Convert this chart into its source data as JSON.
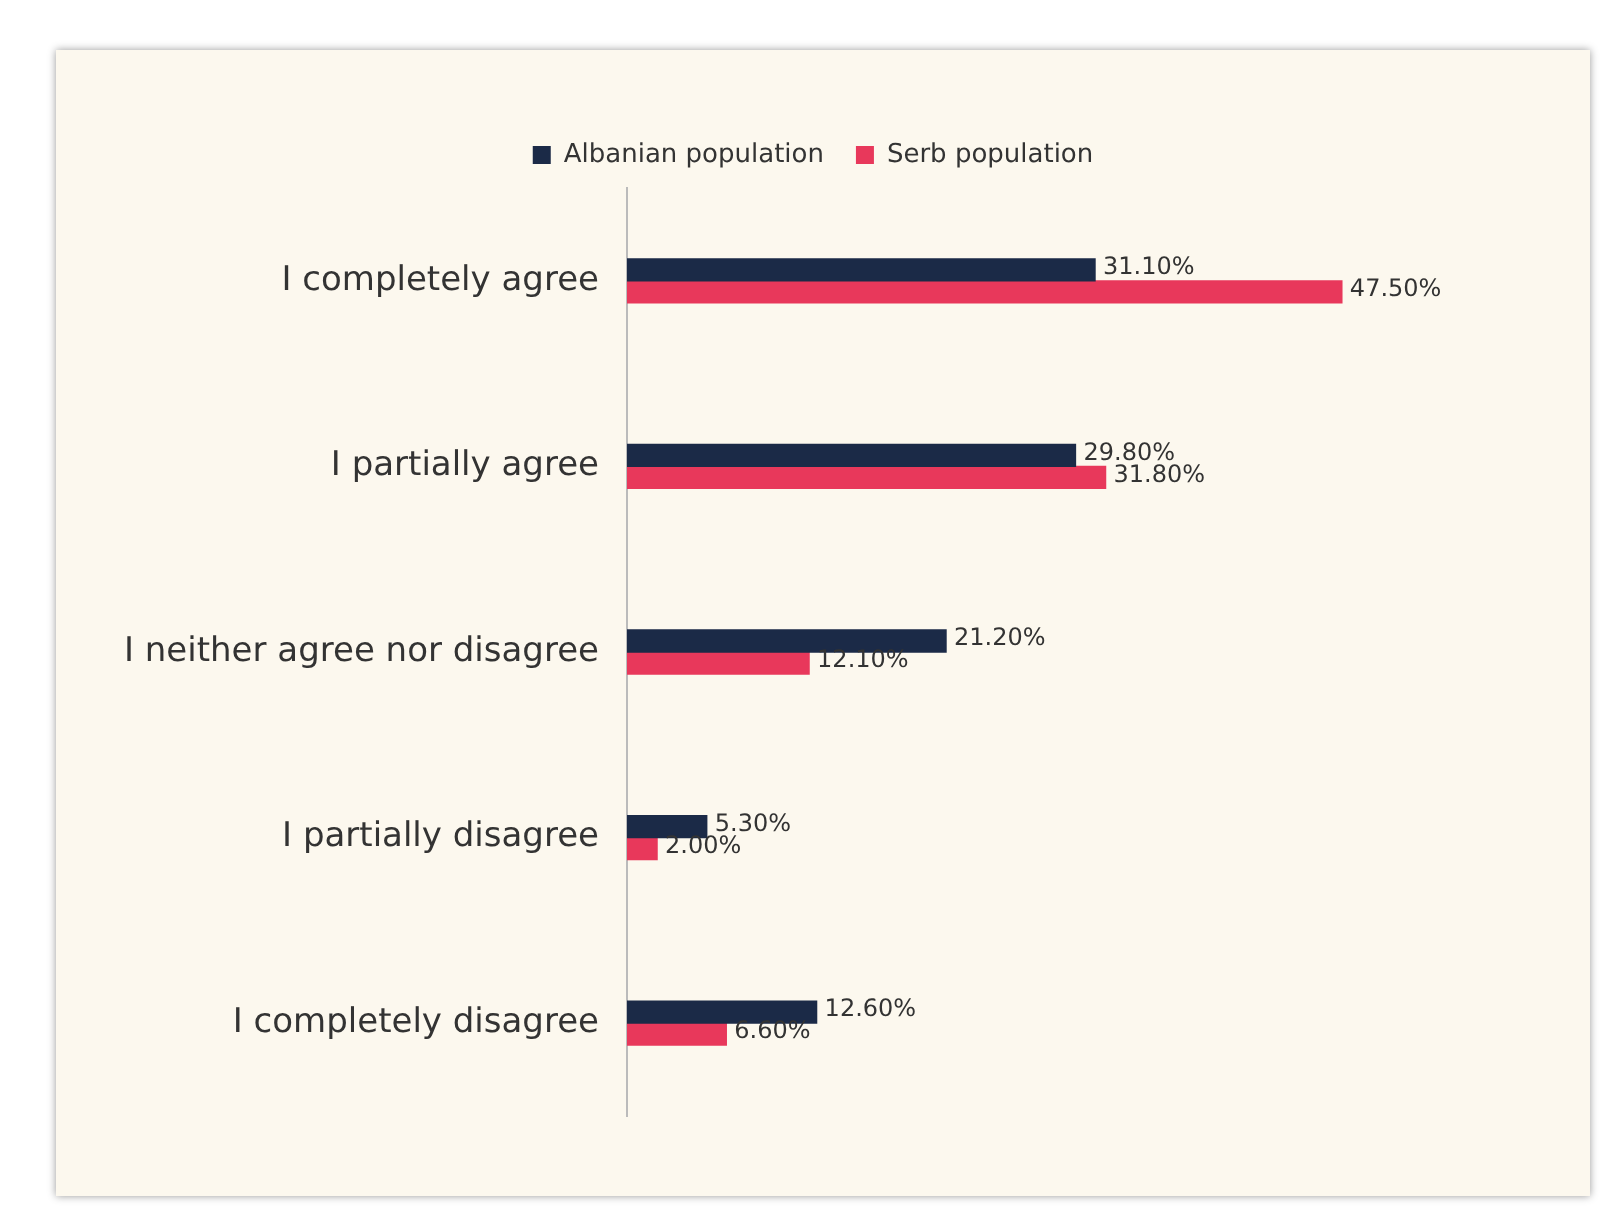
{
  "chart_data": {
    "type": "bar",
    "orientation": "horizontal",
    "categories": [
      "I completely agree",
      "I partially agree",
      "I neither agree nor disagree",
      "I partially disagree",
      "I completely disagree"
    ],
    "series": [
      {
        "name": "Albanian population",
        "color": "#1b2a47",
        "values": [
          31.1,
          29.8,
          21.2,
          5.3,
          12.6
        ],
        "value_labels": [
          "31.10%",
          "29.80%",
          "21.20%",
          "5.30%",
          "12.60%"
        ]
      },
      {
        "name": "Serb population",
        "color": "#e8385b",
        "values": [
          47.5,
          31.8,
          12.1,
          2.0,
          6.6
        ],
        "value_labels": [
          "47.50%",
          "31.80%",
          "12.10%",
          "2.00%",
          "6.60%"
        ]
      }
    ],
    "legend": "top"
  }
}
